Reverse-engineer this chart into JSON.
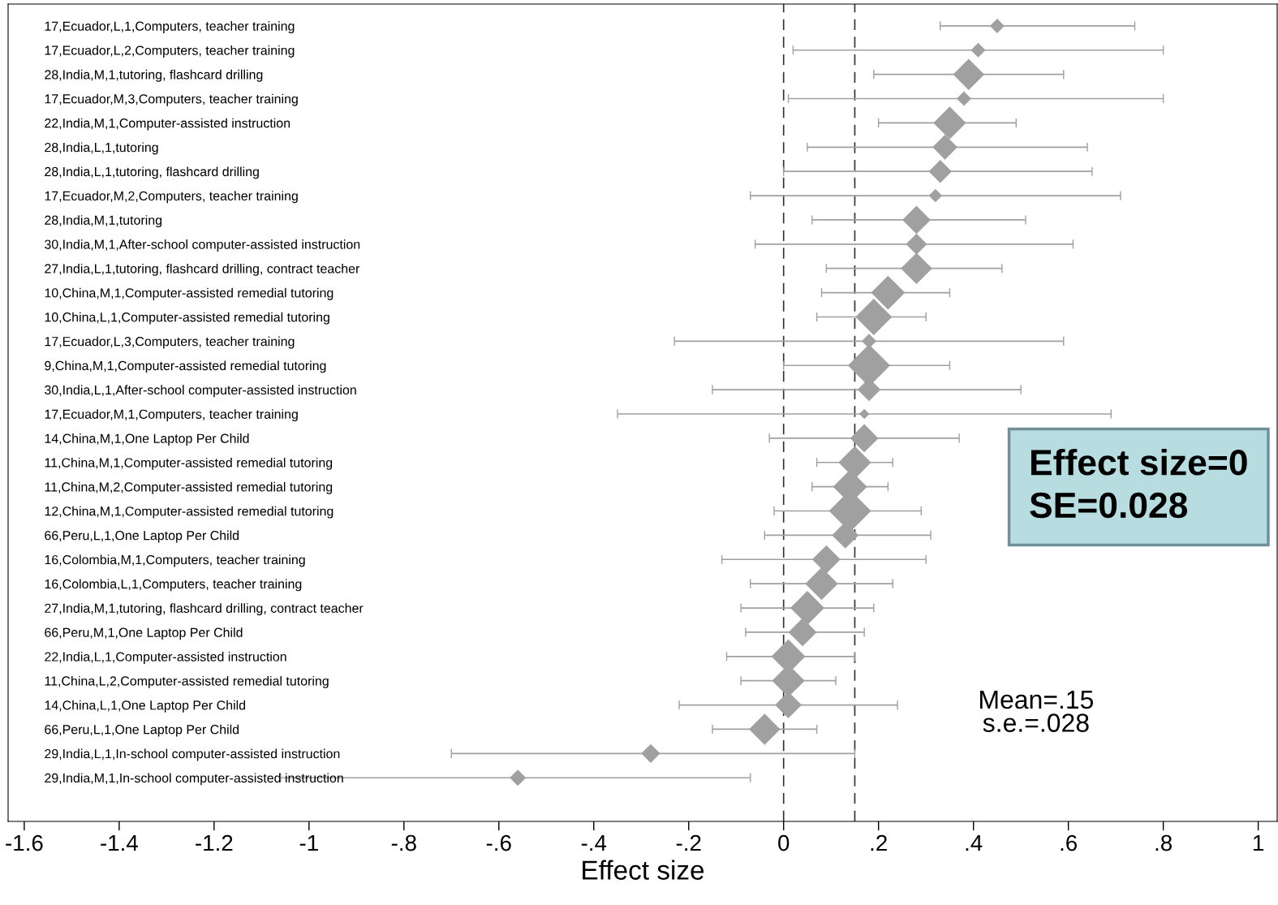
{
  "chart_data": {
    "type": "bubble",
    "orientation": "horizontal",
    "xlabel": "Effect size",
    "marker": "diamond",
    "color": "#a0a0a0",
    "grid": false,
    "categories": [
      "17,Ecuador,L,1,Computers, teacher training",
      "17,Ecuador,L,2,Computers, teacher training",
      "28,India,M,1,tutoring, flashcard drilling",
      "17,Ecuador,M,3,Computers, teacher training",
      "22,India,M,1,Computer-assisted instruction",
      "28,India,L,1,tutoring",
      "28,India,L,1,tutoring, flashcard drilling",
      "17,Ecuador,M,2,Computers, teacher training",
      "28,India,M,1,tutoring",
      "30,India,M,1,After-school computer-assisted instruction",
      "27,India,L,1,tutoring, flashcard drilling, contract teacher",
      "10,China,M,1,Computer-assisted remedial tutoring",
      "10,China,L,1,Computer-assisted remedial tutoring",
      "17,Ecuador,L,3,Computers, teacher training",
      "9,China,M,1,Computer-assisted remedial tutoring",
      "30,India,L,1,After-school computer-assisted instruction",
      "17,Ecuador,M,1,Computers, teacher training",
      "14,China,M,1,One Laptop Per Child",
      "11,China,M,1,Computer-assisted remedial tutoring",
      "11,China,M,2,Computer-assisted remedial tutoring",
      "12,China,M,1,Computer-assisted remedial tutoring",
      "66,Peru,L,1,One Laptop Per Child",
      "16,Colombia,M,1,Computers, teacher training",
      "16,Colombia,L,1,Computers, teacher training",
      "27,India,M,1,tutoring, flashcard drilling, contract teacher",
      "66,Peru,M,1,One Laptop Per Child",
      "22,India,L,1,Computer-assisted instruction",
      "11,China,L,2,Computer-assisted remedial tutoring",
      "14,China,L,1,One Laptop Per Child",
      "66,Peru,L,1,One Laptop Per Child",
      "29,India,L,1,In-school computer-assisted instruction",
      "29,India,M,1,In-school computer-assisted instruction"
    ],
    "values": [
      0.45,
      0.41,
      0.39,
      0.38,
      0.35,
      0.34,
      0.33,
      0.32,
      0.28,
      0.28,
      0.28,
      0.22,
      0.19,
      0.18,
      0.18,
      0.18,
      0.17,
      0.17,
      0.15,
      0.14,
      0.14,
      0.13,
      0.09,
      0.08,
      0.05,
      0.04,
      0.01,
      0.01,
      0.01,
      -0.04,
      -0.28,
      -0.56
    ],
    "errors": [
      [
        0.33,
        0.74
      ],
      [
        0.02,
        0.8
      ],
      [
        0.19,
        0.59
      ],
      [
        0.01,
        0.8
      ],
      [
        0.2,
        0.49
      ],
      [
        0.05,
        0.64
      ],
      [
        0.0,
        0.65
      ],
      [
        -0.07,
        0.71
      ],
      [
        0.06,
        0.51
      ],
      [
        -0.06,
        0.61
      ],
      [
        0.09,
        0.46
      ],
      [
        0.08,
        0.35
      ],
      [
        0.07,
        0.3
      ],
      [
        -0.23,
        0.59
      ],
      [
        0.0,
        0.35
      ],
      [
        -0.15,
        0.5
      ],
      [
        -0.35,
        0.69
      ],
      [
        -0.03,
        0.37
      ],
      [
        0.07,
        0.23
      ],
      [
        0.06,
        0.22
      ],
      [
        -0.02,
        0.29
      ],
      [
        -0.04,
        0.31
      ],
      [
        -0.13,
        0.3
      ],
      [
        -0.07,
        0.23
      ],
      [
        -0.09,
        0.19
      ],
      [
        -0.08,
        0.17
      ],
      [
        -0.12,
        0.15
      ],
      [
        -0.09,
        0.11
      ],
      [
        -0.22,
        0.24
      ],
      [
        -0.15,
        0.07
      ],
      [
        -0.7,
        0.15
      ],
      [
        -1.06,
        -0.07
      ]
    ],
    "sizes": [
      0.12,
      0.12,
      0.55,
      0.12,
      0.6,
      0.35,
      0.3,
      0.1,
      0.45,
      0.25,
      0.55,
      0.65,
      0.75,
      0.12,
      1,
      0.3,
      0.06,
      0.45,
      0.6,
      0.65,
      1,
      0.4,
      0.45,
      0.6,
      0.65,
      0.45,
      0.65,
      0.6,
      0.4,
      0.55,
      0.2,
      0.15
    ],
    "xlim": [
      -1.634,
      1.04
    ],
    "xticks": [
      -1.6,
      -1.4,
      -1.2,
      -1,
      {
        "value": -0.8,
        "label": "-.8"
      },
      {
        "value": -0.6,
        "label": "-.6"
      },
      {
        "value": -0.4,
        "label": "-.4"
      },
      {
        "value": -0.2,
        "label": "-.2"
      },
      0,
      {
        "value": 0.2,
        "label": ".2"
      },
      {
        "value": 0.4,
        "label": ".4"
      },
      {
        "value": 0.6,
        "label": ".6"
      },
      {
        "value": 0.8,
        "label": ".8"
      },
      1
    ],
    "ref_lines": [
      {
        "axis": "x",
        "value": 0,
        "color": "#333333",
        "line_style": "dashed"
      },
      {
        "axis": "x",
        "value": 0.15,
        "color": "#333333",
        "line_style": "dashed"
      }
    ],
    "annotations": [
      "Mean=.15\ns.e.=.028",
      "Effect size=0\nSE=0.028"
    ]
  }
}
